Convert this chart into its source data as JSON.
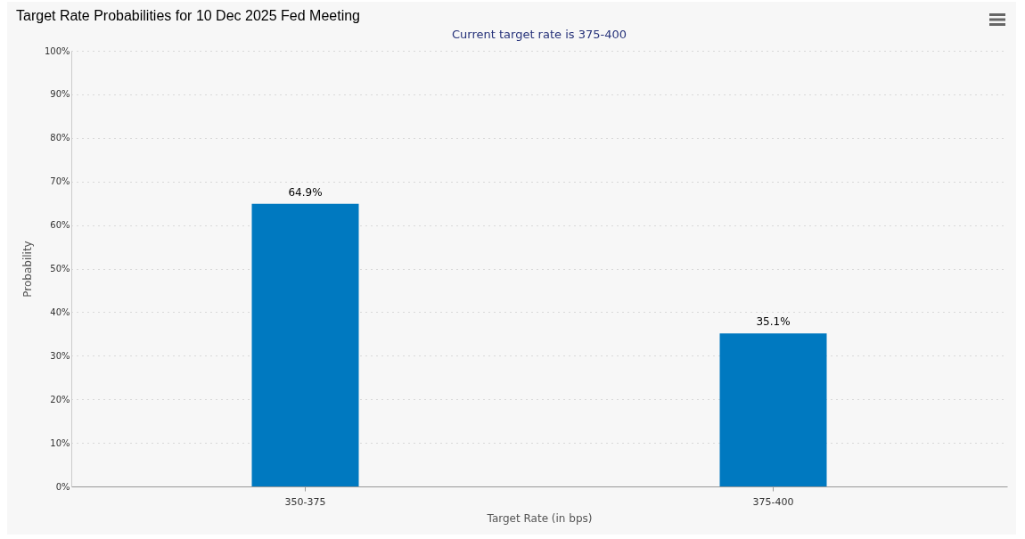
{
  "chart_data": {
    "type": "bar",
    "title": "Target Rate Probabilities for 10 Dec 2025 Fed Meeting",
    "subtitle": "Current target rate is 375-400",
    "xlabel": "Target Rate (in bps)",
    "ylabel": "Probability",
    "categories": [
      "350-375",
      "375-400"
    ],
    "values": [
      64.9,
      35.1
    ],
    "color": "#0079c0",
    "value_labels": [
      "64.9%",
      "35.1%"
    ],
    "ylim": [
      0,
      100
    ],
    "yticks": [
      {
        "value": 0,
        "label": "0%"
      },
      {
        "value": 10,
        "label": "10%"
      },
      {
        "value": 20,
        "label": "20%"
      },
      {
        "value": 30,
        "label": "30%"
      },
      {
        "value": 40,
        "label": "40%"
      },
      {
        "value": 50,
        "label": "50%"
      },
      {
        "value": 60,
        "label": "60%"
      },
      {
        "value": 70,
        "label": "70%"
      },
      {
        "value": 80,
        "label": "80%"
      },
      {
        "value": 90,
        "label": "90%"
      },
      {
        "value": 100,
        "label": "100%"
      }
    ],
    "grid": "y"
  }
}
